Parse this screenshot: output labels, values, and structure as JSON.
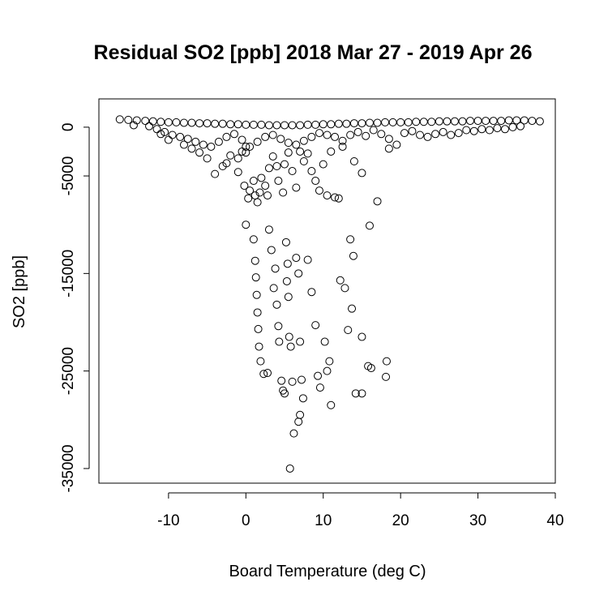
{
  "chart_data": {
    "type": "scatter",
    "title": "Residual SO2 [ppb] 2018 Mar 27 - 2019 Apr 26",
    "xlabel": "Board Temperature (deg C)",
    "ylabel": "SO2 [ppb]",
    "xlim": [
      -19,
      40
    ],
    "ylim": [
      -36500,
      2900
    ],
    "x_ticks": [
      -10,
      0,
      10,
      20,
      30,
      40
    ],
    "x_tick_labels": [
      "-10",
      "0",
      "10",
      "20",
      "30",
      "40"
    ],
    "y_ticks": [
      0,
      -5000,
      -15000,
      -25000,
      -35000
    ],
    "y_tick_labels": [
      "0",
      "-5000",
      "-15000",
      "-25000",
      "-35000"
    ],
    "grid": false,
    "marker": "open-circle",
    "points": [
      [
        -16.3,
        800
      ],
      [
        -15.2,
        750
      ],
      [
        -14.1,
        700
      ],
      [
        -13.0,
        650
      ],
      [
        -12.0,
        600
      ],
      [
        -11.0,
        550
      ],
      [
        -10.0,
        500
      ],
      [
        -9.0,
        500
      ],
      [
        -8.0,
        450
      ],
      [
        -7.0,
        450
      ],
      [
        -6.0,
        400
      ],
      [
        -5.0,
        400
      ],
      [
        -4.0,
        350
      ],
      [
        -3.0,
        350
      ],
      [
        -2.0,
        300
      ],
      [
        -1.0,
        300
      ],
      [
        0.0,
        250
      ],
      [
        1.0,
        250
      ],
      [
        2.0,
        250
      ],
      [
        3.0,
        200
      ],
      [
        4.0,
        200
      ],
      [
        5.0,
        200
      ],
      [
        6.0,
        200
      ],
      [
        7.0,
        200
      ],
      [
        8.0,
        250
      ],
      [
        9.0,
        250
      ],
      [
        10.0,
        300
      ],
      [
        11.0,
        300
      ],
      [
        12.0,
        350
      ],
      [
        13.0,
        350
      ],
      [
        14.0,
        400
      ],
      [
        15.0,
        400
      ],
      [
        16.0,
        450
      ],
      [
        17.0,
        450
      ],
      [
        18.0,
        500
      ],
      [
        19.0,
        500
      ],
      [
        20.0,
        500
      ],
      [
        21.0,
        500
      ],
      [
        22.0,
        550
      ],
      [
        23.0,
        550
      ],
      [
        24.0,
        550
      ],
      [
        25.0,
        600
      ],
      [
        26.0,
        600
      ],
      [
        27.0,
        600
      ],
      [
        28.0,
        600
      ],
      [
        29.0,
        650
      ],
      [
        30.0,
        650
      ],
      [
        31.0,
        650
      ],
      [
        32.0,
        650
      ],
      [
        33.0,
        650
      ],
      [
        34.0,
        700
      ],
      [
        35.0,
        700
      ],
      [
        36.0,
        700
      ],
      [
        37.0,
        650
      ],
      [
        38.0,
        600
      ],
      [
        -14.5,
        200
      ],
      [
        -12.5,
        100
      ],
      [
        -11.5,
        -200
      ],
      [
        -10.5,
        -500
      ],
      [
        -9.5,
        -800
      ],
      [
        -8.5,
        -1000
      ],
      [
        -7.5,
        -1200
      ],
      [
        -6.5,
        -1500
      ],
      [
        -5.5,
        -1800
      ],
      [
        -4.5,
        -2000
      ],
      [
        -3.5,
        -1500
      ],
      [
        -2.5,
        -1000
      ],
      [
        -1.5,
        -700
      ],
      [
        -0.5,
        -1300
      ],
      [
        0.5,
        -2000
      ],
      [
        1.5,
        -1500
      ],
      [
        2.5,
        -1000
      ],
      [
        3.5,
        -800
      ],
      [
        4.5,
        -1200
      ],
      [
        5.5,
        -1600
      ],
      [
        6.5,
        -1800
      ],
      [
        7.5,
        -1400
      ],
      [
        8.5,
        -1000
      ],
      [
        9.5,
        -600
      ],
      [
        10.5,
        -800
      ],
      [
        11.5,
        -1000
      ],
      [
        12.5,
        -1400
      ],
      [
        13.5,
        -800
      ],
      [
        14.5,
        -500
      ],
      [
        15.5,
        -900
      ],
      [
        16.5,
        -300
      ],
      [
        17.5,
        -700
      ],
      [
        18.5,
        -1200
      ],
      [
        19.5,
        -1800
      ],
      [
        20.5,
        -600
      ],
      [
        21.5,
        -400
      ],
      [
        22.5,
        -800
      ],
      [
        23.5,
        -1000
      ],
      [
        24.5,
        -700
      ],
      [
        25.5,
        -500
      ],
      [
        26.5,
        -800
      ],
      [
        27.5,
        -600
      ],
      [
        28.5,
        -300
      ],
      [
        29.5,
        -400
      ],
      [
        30.5,
        -200
      ],
      [
        31.5,
        -300
      ],
      [
        32.5,
        -100
      ],
      [
        33.5,
        -200
      ],
      [
        34.5,
        0
      ],
      [
        35.5,
        100
      ],
      [
        -11.0,
        -700
      ],
      [
        -10.0,
        -1300
      ],
      [
        -8.0,
        -1800
      ],
      [
        -7.0,
        -2200
      ],
      [
        -6.0,
        -2600
      ],
      [
        -5.0,
        -3200
      ],
      [
        -3.0,
        -4000
      ],
      [
        -4.0,
        -4800
      ],
      [
        -2.5,
        -3700
      ],
      [
        -2.0,
        -2900
      ],
      [
        -1.0,
        -3200
      ],
      [
        -1.0,
        -4600
      ],
      [
        -0.5,
        -2500
      ],
      [
        0.0,
        -2000
      ],
      [
        0.0,
        -2600
      ],
      [
        -0.2,
        -6000
      ],
      [
        0.5,
        -6500
      ],
      [
        0.3,
        -7300
      ],
      [
        1.0,
        -5500
      ],
      [
        1.2,
        -7000
      ],
      [
        1.5,
        -7700
      ],
      [
        1.8,
        -6700
      ],
      [
        2.0,
        -5200
      ],
      [
        2.5,
        -6000
      ],
      [
        2.8,
        -7000
      ],
      [
        3.0,
        -4200
      ],
      [
        3.5,
        -3000
      ],
      [
        4.0,
        -4000
      ],
      [
        4.2,
        -5500
      ],
      [
        4.8,
        -6700
      ],
      [
        5.0,
        -3800
      ],
      [
        5.5,
        -2600
      ],
      [
        6.0,
        -4500
      ],
      [
        6.5,
        -6200
      ],
      [
        7.0,
        -2500
      ],
      [
        7.5,
        -3500
      ],
      [
        8.0,
        -2700
      ],
      [
        8.5,
        -4500
      ],
      [
        9.0,
        -5500
      ],
      [
        9.5,
        -6500
      ],
      [
        10.0,
        -3800
      ],
      [
        10.5,
        -7000
      ],
      [
        11.0,
        -2500
      ],
      [
        11.5,
        -7200
      ],
      [
        12.0,
        -7300
      ],
      [
        12.5,
        -2000
      ],
      [
        14.0,
        -3500
      ],
      [
        15.0,
        -4700
      ],
      [
        17.0,
        -7600
      ],
      [
        18.5,
        -2200
      ],
      [
        0.0,
        -10000
      ],
      [
        1.0,
        -11500
      ],
      [
        1.2,
        -13700
      ],
      [
        1.3,
        -15400
      ],
      [
        1.4,
        -17200
      ],
      [
        1.5,
        -19000
      ],
      [
        1.6,
        -20700
      ],
      [
        1.7,
        -22500
      ],
      [
        1.9,
        -24000
      ],
      [
        2.3,
        -25300
      ],
      [
        2.8,
        -25200
      ],
      [
        3.0,
        -10500
      ],
      [
        3.3,
        -12600
      ],
      [
        3.8,
        -14500
      ],
      [
        3.6,
        -16500
      ],
      [
        4.0,
        -18200
      ],
      [
        4.2,
        -20400
      ],
      [
        4.3,
        -22000
      ],
      [
        4.6,
        -26000
      ],
      [
        4.8,
        -27000
      ],
      [
        5.0,
        -27300
      ],
      [
        5.2,
        -11800
      ],
      [
        5.4,
        -14000
      ],
      [
        5.3,
        -15800
      ],
      [
        5.5,
        -17400
      ],
      [
        5.6,
        -21500
      ],
      [
        5.8,
        -22500
      ],
      [
        6.0,
        -26100
      ],
      [
        6.2,
        -31400
      ],
      [
        5.7,
        -35000
      ],
      [
        6.5,
        -13400
      ],
      [
        6.8,
        -15000
      ],
      [
        7.0,
        -22000
      ],
      [
        7.2,
        -25900
      ],
      [
        7.4,
        -27800
      ],
      [
        7.0,
        -29500
      ],
      [
        6.8,
        -30200
      ],
      [
        8.0,
        -13600
      ],
      [
        8.5,
        -16900
      ],
      [
        9.0,
        -20300
      ],
      [
        9.3,
        -25500
      ],
      [
        9.6,
        -26700
      ],
      [
        10.2,
        -22000
      ],
      [
        10.5,
        -25000
      ],
      [
        10.8,
        -24000
      ],
      [
        11.0,
        -28500
      ],
      [
        12.2,
        -15700
      ],
      [
        12.8,
        -16500
      ],
      [
        13.2,
        -20800
      ],
      [
        13.7,
        -18600
      ],
      [
        14.2,
        -27300
      ],
      [
        15.0,
        -27300
      ],
      [
        15.8,
        -24500
      ],
      [
        16.2,
        -24700
      ],
      [
        18.2,
        -24000
      ],
      [
        18.1,
        -25600
      ],
      [
        15.0,
        -21500
      ],
      [
        16.0,
        -10100
      ],
      [
        13.5,
        -11500
      ],
      [
        13.9,
        -13200
      ]
    ]
  }
}
